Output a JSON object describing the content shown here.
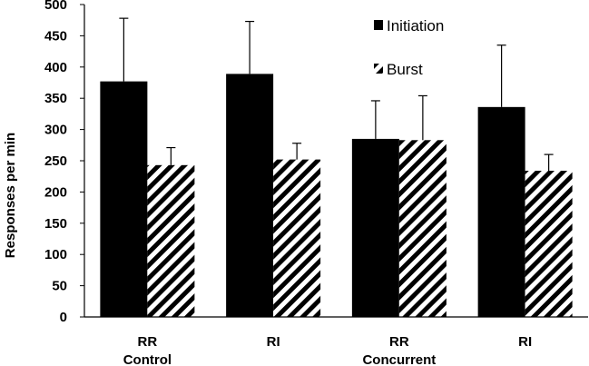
{
  "chart_data": {
    "type": "bar",
    "title": "",
    "xlabel": "",
    "ylabel": "Responses per min",
    "ylim": [
      0,
      500
    ],
    "yticks": [
      0,
      50,
      100,
      150,
      200,
      250,
      300,
      350,
      400,
      450,
      500
    ],
    "grid": false,
    "legend_position": "top-right",
    "categories": [
      {
        "label": "RR",
        "group": "Control"
      },
      {
        "label": "RI",
        "group": ""
      },
      {
        "label": "RR",
        "group": "Concurrent"
      },
      {
        "label": "RI",
        "group": ""
      }
    ],
    "series": [
      {
        "name": "Initiation",
        "style": "solid",
        "color": "#000000",
        "values": [
          377,
          389,
          285,
          336
        ],
        "errors": [
          101,
          84,
          61,
          99
        ]
      },
      {
        "name": "Burst",
        "style": "hatched",
        "color": "#000000",
        "values": [
          243,
          252,
          283,
          234
        ],
        "errors": [
          28,
          26,
          71,
          26
        ]
      }
    ]
  }
}
